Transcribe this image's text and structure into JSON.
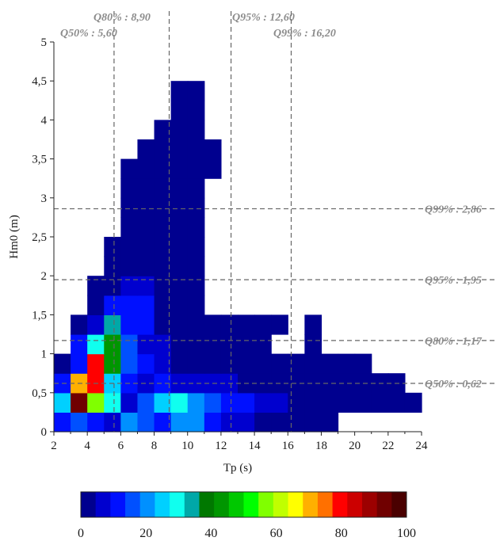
{
  "chart_data": {
    "type": "heatmap",
    "xlabel": "Tp (s)",
    "ylabel": "Hm0 (m)",
    "xlim": [
      2,
      24
    ],
    "ylim": [
      0,
      5
    ],
    "x_ticks": [
      "2",
      "4",
      "6",
      "8",
      "10",
      "12",
      "14",
      "16",
      "18",
      "20",
      "22",
      "24"
    ],
    "y_ticks": [
      "0",
      "0,5",
      "1",
      "1,5",
      "2",
      "2,5",
      "3",
      "3,5",
      "4",
      "4,5",
      "5"
    ],
    "cell_size": {
      "tp": 1,
      "hm0": 0.25
    },
    "cells": [
      [
        2,
        0,
        10
      ],
      [
        3,
        0,
        15
      ],
      [
        4,
        0,
        12
      ],
      [
        5,
        0,
        8
      ],
      [
        6,
        0,
        20
      ],
      [
        7,
        0,
        18
      ],
      [
        8,
        0,
        10
      ],
      [
        9,
        0,
        22
      ],
      [
        10,
        0,
        22
      ],
      [
        11,
        0,
        12
      ],
      [
        12,
        0,
        5
      ],
      [
        13,
        0,
        5
      ],
      [
        14,
        0,
        3
      ],
      [
        15,
        0,
        3
      ],
      [
        16,
        0,
        2
      ],
      [
        17,
        0,
        2
      ],
      [
        18,
        0,
        2
      ],
      [
        2,
        0.25,
        25
      ],
      [
        3,
        0.25,
        95
      ],
      [
        4,
        0.25,
        55
      ],
      [
        5,
        0.25,
        30
      ],
      [
        6,
        0.25,
        8
      ],
      [
        7,
        0.25,
        15
      ],
      [
        8,
        0.25,
        25
      ],
      [
        9,
        0.25,
        30
      ],
      [
        10,
        0.25,
        20
      ],
      [
        11,
        0.25,
        15
      ],
      [
        12,
        0.25,
        10
      ],
      [
        13,
        0.25,
        10
      ],
      [
        14,
        0.25,
        8
      ],
      [
        15,
        0.25,
        6
      ],
      [
        16,
        0.25,
        4
      ],
      [
        17,
        0.25,
        3
      ],
      [
        18,
        0.25,
        3
      ],
      [
        19,
        0.25,
        2
      ],
      [
        20,
        0.25,
        2
      ],
      [
        21,
        0.25,
        2
      ],
      [
        22,
        0.25,
        2
      ],
      [
        23,
        0.25,
        2
      ],
      [
        2,
        0.5,
        12
      ],
      [
        3,
        0.5,
        70
      ],
      [
        4,
        0.5,
        80
      ],
      [
        5,
        0.5,
        25
      ],
      [
        6,
        0.5,
        10
      ],
      [
        7,
        0.5,
        8
      ],
      [
        8,
        0.5,
        10
      ],
      [
        9,
        0.5,
        8
      ],
      [
        10,
        0.5,
        7
      ],
      [
        11,
        0.5,
        5
      ],
      [
        12,
        0.5,
        5
      ],
      [
        13,
        0.5,
        4
      ],
      [
        14,
        0.5,
        3
      ],
      [
        15,
        0.5,
        3
      ],
      [
        16,
        0.5,
        3
      ],
      [
        17,
        0.5,
        2
      ],
      [
        18,
        0.5,
        2
      ],
      [
        19,
        0.5,
        2
      ],
      [
        20,
        0.5,
        2
      ],
      [
        21,
        0.5,
        2
      ],
      [
        22,
        0.5,
        2
      ],
      [
        2,
        0.75,
        3
      ],
      [
        3,
        0.75,
        12
      ],
      [
        4,
        0.75,
        80
      ],
      [
        5,
        0.75,
        45
      ],
      [
        6,
        0.75,
        18
      ],
      [
        7,
        0.75,
        10
      ],
      [
        8,
        0.75,
        6
      ],
      [
        9,
        0.75,
        4
      ],
      [
        10,
        0.75,
        4
      ],
      [
        11,
        0.75,
        3
      ],
      [
        12,
        0.75,
        3
      ],
      [
        13,
        0.75,
        3
      ],
      [
        14,
        0.75,
        2
      ],
      [
        15,
        0.75,
        2
      ],
      [
        16,
        0.75,
        2
      ],
      [
        17,
        0.75,
        2
      ],
      [
        18,
        0.75,
        2
      ],
      [
        19,
        0.75,
        2
      ],
      [
        20,
        0.75,
        2
      ],
      [
        3,
        1,
        10
      ],
      [
        4,
        1,
        30
      ],
      [
        5,
        1,
        45
      ],
      [
        6,
        1,
        15
      ],
      [
        7,
        1,
        8
      ],
      [
        8,
        1,
        5
      ],
      [
        9,
        1,
        3
      ],
      [
        10,
        1,
        3
      ],
      [
        11,
        1,
        2
      ],
      [
        12,
        1,
        2
      ],
      [
        13,
        1,
        2
      ],
      [
        14,
        1,
        2
      ],
      [
        17,
        1,
        2
      ],
      [
        3,
        1.25,
        3
      ],
      [
        4,
        1.25,
        8
      ],
      [
        5,
        1.25,
        35
      ],
      [
        6,
        1.25,
        12
      ],
      [
        7,
        1.25,
        10
      ],
      [
        8,
        1.25,
        4
      ],
      [
        9,
        1.25,
        3
      ],
      [
        10,
        1.25,
        2
      ],
      [
        11,
        1.25,
        2
      ],
      [
        12,
        1.25,
        2
      ],
      [
        13,
        1.25,
        2
      ],
      [
        14,
        1.25,
        2
      ],
      [
        15,
        1.25,
        2
      ],
      [
        17,
        1.25,
        2
      ],
      [
        4,
        1.5,
        3
      ],
      [
        5,
        1.5,
        12
      ],
      [
        6,
        1.5,
        12
      ],
      [
        7,
        1.5,
        10
      ],
      [
        8,
        1.5,
        4
      ],
      [
        9,
        1.5,
        2
      ],
      [
        10,
        1.5,
        2
      ],
      [
        4,
        1.75,
        2
      ],
      [
        5,
        1.75,
        4
      ],
      [
        6,
        1.75,
        8
      ],
      [
        7,
        1.75,
        6
      ],
      [
        8,
        1.75,
        3
      ],
      [
        9,
        1.75,
        2
      ],
      [
        10,
        1.75,
        2
      ],
      [
        5,
        2,
        3
      ],
      [
        6,
        2,
        4
      ],
      [
        7,
        2,
        3
      ],
      [
        8,
        2,
        2
      ],
      [
        9,
        2,
        2
      ],
      [
        10,
        2,
        2
      ],
      [
        5,
        2.25,
        2
      ],
      [
        6,
        2.25,
        2
      ],
      [
        7,
        2.25,
        2
      ],
      [
        8,
        2.25,
        2
      ],
      [
        9,
        2.25,
        2
      ],
      [
        10,
        2.25,
        2
      ],
      [
        6,
        2.5,
        2
      ],
      [
        7,
        2.5,
        2
      ],
      [
        8,
        2.5,
        2
      ],
      [
        9,
        2.5,
        2
      ],
      [
        10,
        2.5,
        2
      ],
      [
        6,
        2.75,
        2
      ],
      [
        7,
        2.75,
        2
      ],
      [
        8,
        2.75,
        2
      ],
      [
        9,
        2.75,
        2
      ],
      [
        10,
        2.75,
        2
      ],
      [
        6,
        3,
        2
      ],
      [
        7,
        3,
        2
      ],
      [
        8,
        3,
        2
      ],
      [
        9,
        3,
        2
      ],
      [
        10,
        3,
        2
      ],
      [
        6,
        3.25,
        2
      ],
      [
        7,
        3.25,
        2
      ],
      [
        8,
        3.25,
        2
      ],
      [
        9,
        3.25,
        2
      ],
      [
        10,
        3.25,
        2
      ],
      [
        11,
        3.25,
        2
      ],
      [
        7,
        3.5,
        2
      ],
      [
        8,
        3.5,
        2
      ],
      [
        9,
        3.5,
        2
      ],
      [
        10,
        3.5,
        2
      ],
      [
        11,
        3.5,
        2
      ],
      [
        8,
        3.75,
        2
      ],
      [
        9,
        3.75,
        2
      ],
      [
        10,
        3.75,
        2
      ],
      [
        9,
        4,
        2
      ],
      [
        10,
        4,
        2
      ],
      [
        9,
        4.25,
        2
      ],
      [
        10,
        4.25,
        2
      ]
    ],
    "quantiles_tp": [
      {
        "label": "Q50% : 5,60",
        "value": 5.6
      },
      {
        "label": "Q80% : 8,90",
        "value": 8.9
      },
      {
        "label": "Q95% : 12,60",
        "value": 12.6
      },
      {
        "label": "Q99% : 16,20",
        "value": 16.2
      }
    ],
    "quantiles_hm0": [
      {
        "label": "Q99% : 2,86",
        "value": 2.86
      },
      {
        "label": "Q95% : 1,95",
        "value": 1.95
      },
      {
        "label": "Q80% : 1,17",
        "value": 1.17
      },
      {
        "label": "Q50% : 0,62",
        "value": 0.62
      }
    ],
    "colorbar": {
      "range": [
        0,
        100
      ],
      "ticks": [
        "0",
        "20",
        "40",
        "60",
        "80",
        "100"
      ],
      "colors": [
        "#00008f",
        "#0000cf",
        "#0010ff",
        "#0050ff",
        "#0090ff",
        "#00d0ff",
        "#10ffef",
        "#00a8a8",
        "#007800",
        "#009600",
        "#00c800",
        "#00ff00",
        "#80ff00",
        "#c0ff00",
        "#ffff00",
        "#ffb000",
        "#ff7000",
        "#ff0000",
        "#cc0000",
        "#9c0000",
        "#700000",
        "#4a0000"
      ]
    },
    "grid": false,
    "legend": "none"
  }
}
